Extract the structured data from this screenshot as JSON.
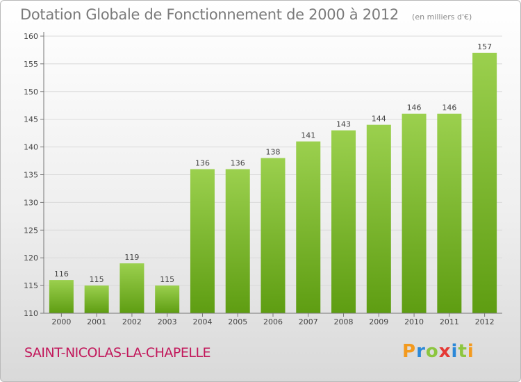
{
  "header": {
    "title": "Dotation Globale de Fonctionnement de 2000 à 2012",
    "subtitle": "(en milliers d'€)"
  },
  "footer": {
    "commune": "SAINT-NICOLAS-LA-CHAPELLE",
    "brand": "Proxiti"
  },
  "colors": {
    "bar_top": "#9bd04e",
    "bar_bottom": "#5e9d12",
    "commune": "#c2185b"
  },
  "chart_data": {
    "type": "bar",
    "title": "Dotation Globale de Fonctionnement de 2000 à 2012",
    "subtitle": "(en milliers d'€)",
    "categories": [
      "2000",
      "2001",
      "2002",
      "2003",
      "2004",
      "2005",
      "2006",
      "2007",
      "2008",
      "2009",
      "2010",
      "2011",
      "2012"
    ],
    "values": [
      116,
      115,
      119,
      115,
      136,
      136,
      138,
      141,
      143,
      144,
      146,
      146,
      157
    ],
    "ylim": [
      110,
      160
    ],
    "yticks": [
      110,
      115,
      120,
      125,
      130,
      135,
      140,
      145,
      150,
      155,
      160
    ],
    "grid": true,
    "legend": "none"
  }
}
